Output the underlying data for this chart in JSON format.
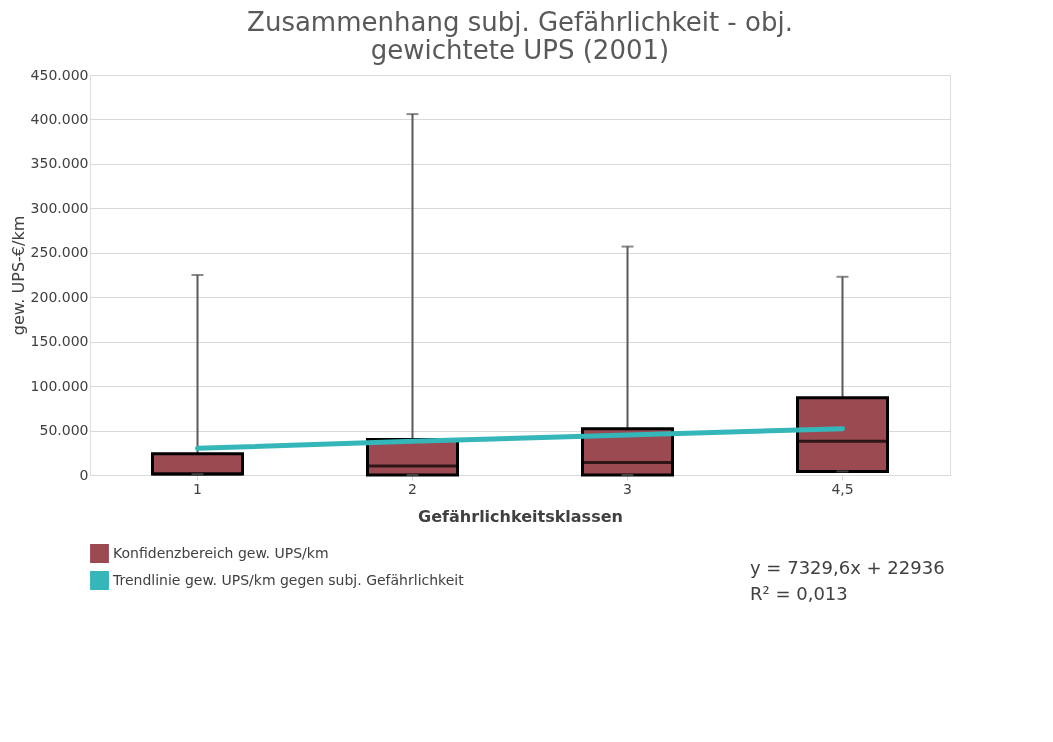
{
  "chart_data": {
    "type": "box",
    "title": "Zusammenhang subj. Gefährlichkeit - obj. gewichtete UPS (2001)",
    "xlabel": "Gefährlichkeitsklassen",
    "ylabel": "gew. UPS-€/km",
    "categories": [
      "1",
      "2",
      "3",
      "4,5"
    ],
    "series": [
      {
        "type": "box",
        "name": "Konfidenzbereich gew. UPS/km",
        "color": "#9b4a52",
        "boxes": [
          {
            "low": 1000,
            "q1": 1000,
            "median": 1000,
            "q3": 24000,
            "high": 225000
          },
          {
            "low": 0,
            "q1": 0,
            "median": 10000,
            "q3": 40000,
            "high": 406000
          },
          {
            "low": 0,
            "q1": 0,
            "median": 14000,
            "q3": 52000,
            "high": 257000
          },
          {
            "low": 4000,
            "q1": 4000,
            "median": 38000,
            "q3": 87000,
            "high": 223000
          }
        ]
      },
      {
        "type": "line",
        "name": "Trendlinie gew. UPS/km gegen subj. Gefährlichkeit",
        "color": "#35b6b9",
        "x": [
          "1",
          "2",
          "3",
          "4,5"
        ],
        "values": [
          30000,
          38000,
          45000,
          52000
        ]
      }
    ],
    "ylim": [
      0,
      450000
    ],
    "yticks": [
      {
        "value": 0,
        "label": "0"
      },
      {
        "value": 50000,
        "label": "50.000"
      },
      {
        "value": 100000,
        "label": "100.000"
      },
      {
        "value": 150000,
        "label": "150.000"
      },
      {
        "value": 200000,
        "label": "200.000"
      },
      {
        "value": 250000,
        "label": "250.000"
      },
      {
        "value": 300000,
        "label": "300.000"
      },
      {
        "value": 350000,
        "label": "350.000"
      },
      {
        "value": 400000,
        "label": "400.000"
      },
      {
        "value": 450000,
        "label": "450.000"
      }
    ],
    "grid": "y",
    "legend": "bottom left",
    "annotations": [
      "y = 7329,6x + 22936",
      "R² = 0,013"
    ]
  }
}
